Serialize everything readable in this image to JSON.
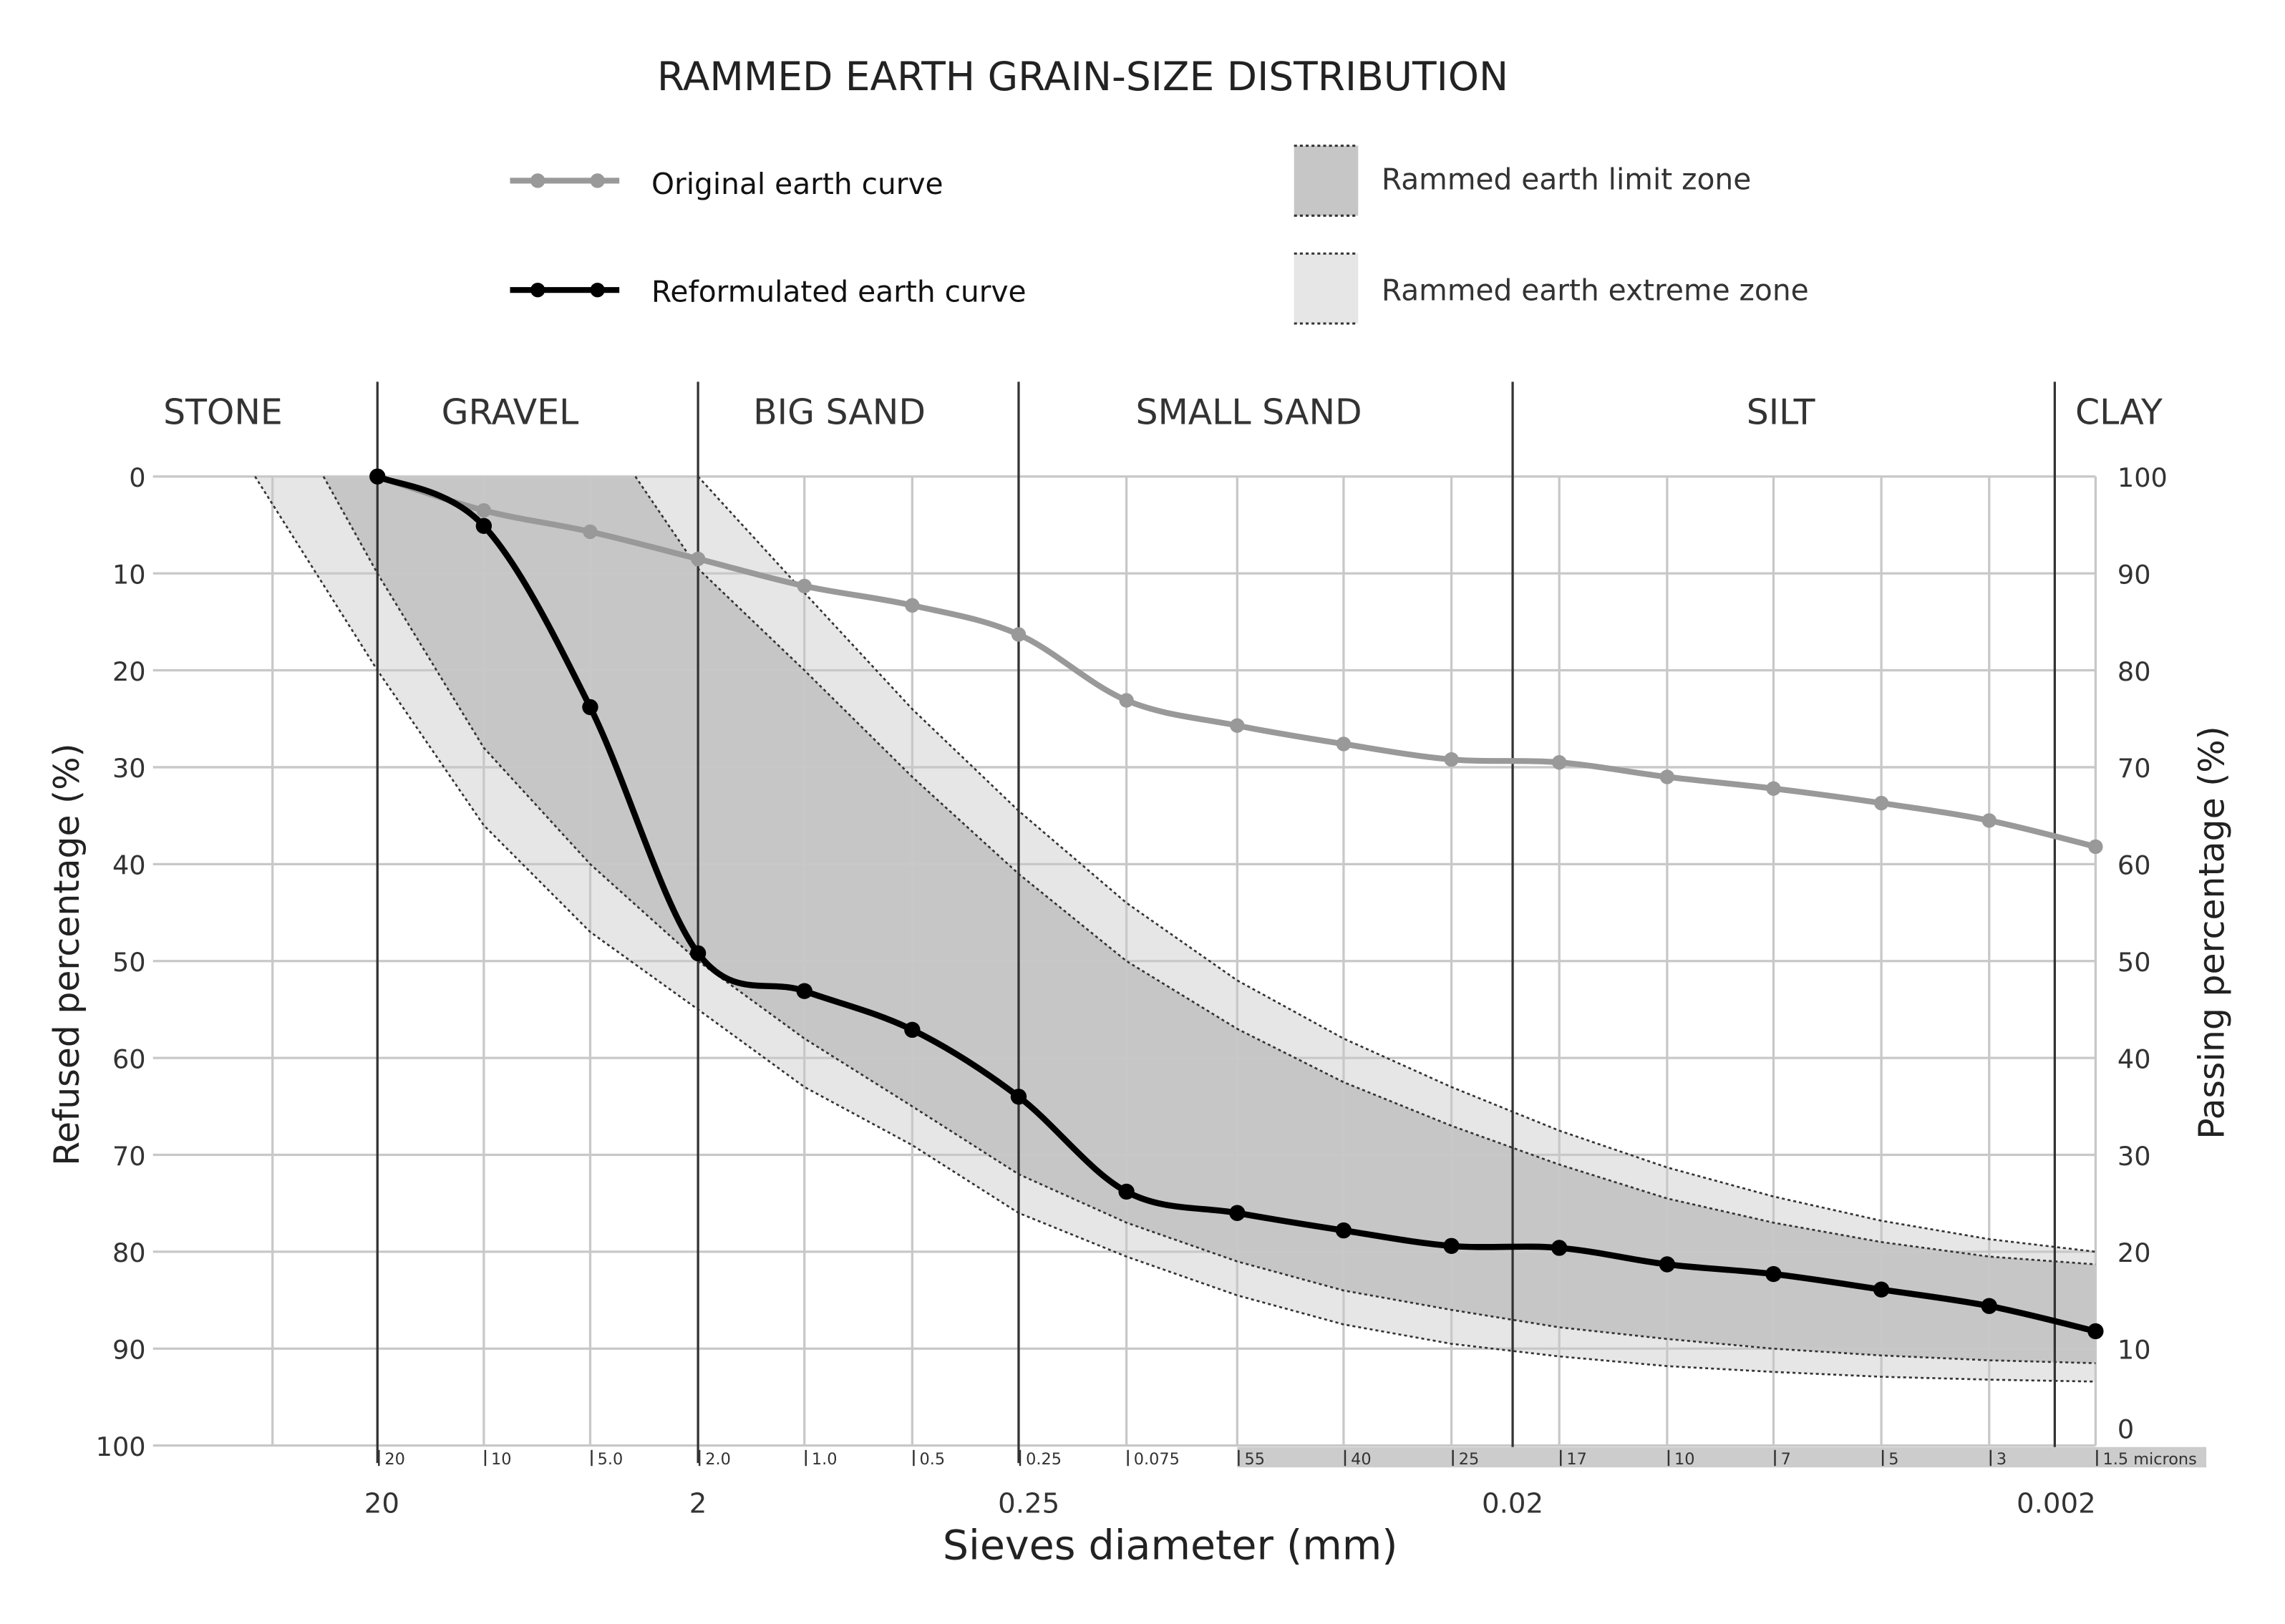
{
  "chart_data": {
    "type": "line",
    "title": "RAMMED EARTH GRAIN-SIZE DISTRIBUTION",
    "xlabel": "Sieves diameter (mm)",
    "ylabel_left": "Refused percentage (%)",
    "ylabel_right": "Passing percentage (%)",
    "left_axis": {
      "range": [
        0,
        100
      ],
      "inverted": true,
      "ticks": [
        "0",
        "10",
        "20",
        "30",
        "40",
        "50",
        "60",
        "70",
        "80",
        "90",
        "100"
      ]
    },
    "right_axis": {
      "range": [
        0,
        100
      ],
      "ticks": [
        "100",
        "90",
        "80",
        "70",
        "60",
        "50",
        "40",
        "30",
        "20",
        "10",
        "0"
      ]
    },
    "grid": true,
    "legend_position": "top",
    "zones": [
      {
        "name": "STONE"
      },
      {
        "name": "GRAVEL"
      },
      {
        "name": "BIG SAND"
      },
      {
        "name": "SMALL SAND"
      },
      {
        "name": "SILT"
      },
      {
        "name": "CLAY"
      }
    ],
    "sieves": [
      "20",
      "10",
      "5.0",
      "2.0",
      "1.0",
      "0.5",
      "0.25",
      "0.075",
      "55",
      "40",
      "25",
      "17",
      "10",
      "7",
      "5",
      "3",
      "1.5 microns"
    ],
    "major_x_labels": [
      "20",
      "2",
      "0.25",
      "0.02",
      "0.002"
    ],
    "series": [
      {
        "name": "Original earth curve",
        "color": "#999999",
        "refused_percent": [
          0,
          3.5,
          5.7,
          8.5,
          11.3,
          13.3,
          16.3,
          23.1,
          25.7,
          27.6,
          29.2,
          29.5,
          31.0,
          32.2,
          33.7,
          35.5,
          38.2
        ]
      },
      {
        "name": "Reformulated earth curve",
        "color": "#000000",
        "refused_percent": [
          0,
          5.1,
          23.8,
          49.2,
          53.1,
          57.1,
          64.0,
          73.8,
          76.0,
          77.8,
          79.4,
          79.6,
          81.3,
          82.3,
          83.9,
          85.6,
          88.2
        ]
      }
    ],
    "bands": [
      {
        "name": "Rammed earth limit zone",
        "color": "#c6c6c6"
      },
      {
        "name": "Rammed earth extreme zone",
        "color": "#e6e6e6"
      }
    ]
  }
}
